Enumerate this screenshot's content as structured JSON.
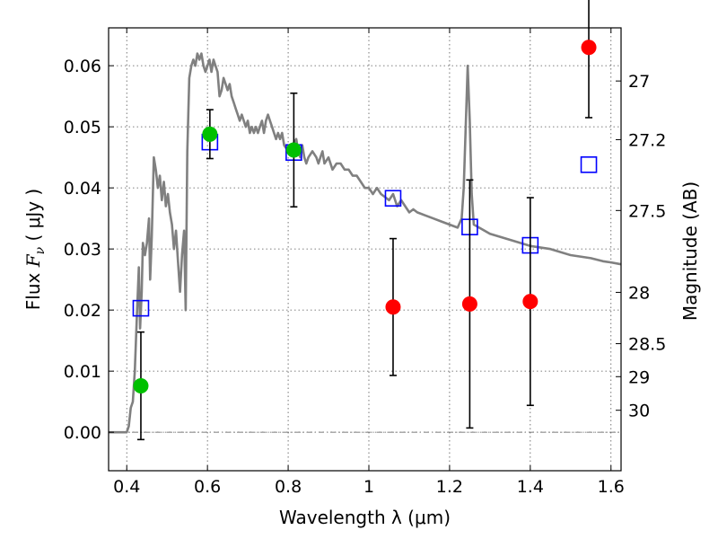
{
  "chart_data": {
    "type": "scatter",
    "xlabel": "Wavelength  λ (μm)",
    "ylabel": "Flux  F_ν  ( μJy )",
    "ylabel_parts": {
      "pre": "Flux  ",
      "math": "F",
      "sub": "ν",
      "post": "  ( μJy )"
    },
    "y2label": "Magnitude (AB)",
    "xlim": [
      0.355,
      1.625
    ],
    "ylim": [
      -0.0063,
      0.0662
    ],
    "grid": true,
    "x_ticks": [
      0.4,
      0.6,
      0.8,
      1.0,
      1.2,
      1.4,
      1.6
    ],
    "x_tick_labels": [
      "0.4",
      "0.6",
      "0.8",
      "1",
      "1.2",
      "1.4",
      "1.6"
    ],
    "y_ticks": [
      0.0,
      0.01,
      0.02,
      0.03,
      0.04,
      0.05,
      0.06
    ],
    "y_tick_labels": [
      "0.00",
      "0.01",
      "0.02",
      "0.03",
      "0.04",
      "0.05",
      "0.06"
    ],
    "y2_ticks": [
      {
        "label": "27",
        "flux": 0.0575
      },
      {
        "label": "27.2",
        "flux": 0.0479
      },
      {
        "label": "27.5",
        "flux": 0.0363
      },
      {
        "label": "28",
        "flux": 0.0229
      },
      {
        "label": "28.5",
        "flux": 0.0145
      },
      {
        "label": "29",
        "flux": 0.0091
      },
      {
        "label": "30",
        "flux": 0.0036
      }
    ],
    "series": [
      {
        "marker": "circle",
        "color": "#00c000",
        "points": [
          {
            "x": 0.435,
            "y": 0.0076,
            "yerr": 0.0088
          },
          {
            "x": 0.606,
            "y": 0.0488,
            "yerr": 0.004
          },
          {
            "x": 0.814,
            "y": 0.0462,
            "yerr": 0.0093
          }
        ]
      },
      {
        "marker": "circle",
        "color": "#ff0000",
        "points": [
          {
            "x": 1.06,
            "y": 0.0205,
            "yerr": 0.0112
          },
          {
            "x": 1.25,
            "y": 0.021,
            "yerr": 0.0203
          },
          {
            "x": 1.4,
            "y": 0.0214,
            "yerr": 0.017
          },
          {
            "x": 1.545,
            "y": 0.063,
            "yerr": 0.0115
          }
        ]
      },
      {
        "marker": "square",
        "color": "#0000ff",
        "points": [
          {
            "x": 0.435,
            "y": 0.0203
          },
          {
            "x": 0.606,
            "y": 0.0475
          },
          {
            "x": 0.814,
            "y": 0.0458
          },
          {
            "x": 1.06,
            "y": 0.0383
          },
          {
            "x": 1.25,
            "y": 0.0336
          },
          {
            "x": 1.4,
            "y": 0.0306
          },
          {
            "x": 1.545,
            "y": 0.0438
          }
        ]
      },
      {
        "marker": "line",
        "color": "#808080",
        "points": [
          [
            0.355,
            0.0
          ],
          [
            0.4,
            0.0
          ],
          [
            0.405,
            0.001
          ],
          [
            0.41,
            0.004
          ],
          [
            0.415,
            0.005
          ],
          [
            0.42,
            0.01
          ],
          [
            0.425,
            0.019
          ],
          [
            0.43,
            0.027
          ],
          [
            0.433,
            0.017
          ],
          [
            0.437,
            0.023
          ],
          [
            0.44,
            0.031
          ],
          [
            0.445,
            0.029
          ],
          [
            0.45,
            0.031
          ],
          [
            0.455,
            0.035
          ],
          [
            0.458,
            0.025
          ],
          [
            0.462,
            0.032
          ],
          [
            0.467,
            0.045
          ],
          [
            0.472,
            0.043
          ],
          [
            0.477,
            0.04
          ],
          [
            0.482,
            0.042
          ],
          [
            0.487,
            0.038
          ],
          [
            0.492,
            0.041
          ],
          [
            0.497,
            0.037
          ],
          [
            0.502,
            0.039
          ],
          [
            0.507,
            0.036
          ],
          [
            0.512,
            0.034
          ],
          [
            0.517,
            0.03
          ],
          [
            0.522,
            0.033
          ],
          [
            0.527,
            0.028
          ],
          [
            0.532,
            0.023
          ],
          [
            0.537,
            0.029
          ],
          [
            0.542,
            0.033
          ],
          [
            0.546,
            0.02
          ],
          [
            0.55,
            0.046
          ],
          [
            0.555,
            0.058
          ],
          [
            0.56,
            0.06
          ],
          [
            0.565,
            0.061
          ],
          [
            0.57,
            0.06
          ],
          [
            0.575,
            0.062
          ],
          [
            0.58,
            0.061
          ],
          [
            0.585,
            0.062
          ],
          [
            0.59,
            0.06
          ],
          [
            0.595,
            0.059
          ],
          [
            0.6,
            0.06
          ],
          [
            0.605,
            0.061
          ],
          [
            0.61,
            0.059
          ],
          [
            0.615,
            0.061
          ],
          [
            0.62,
            0.06
          ],
          [
            0.625,
            0.059
          ],
          [
            0.63,
            0.055
          ],
          [
            0.635,
            0.056
          ],
          [
            0.64,
            0.058
          ],
          [
            0.645,
            0.057
          ],
          [
            0.65,
            0.056
          ],
          [
            0.655,
            0.057
          ],
          [
            0.66,
            0.055
          ],
          [
            0.665,
            0.054
          ],
          [
            0.67,
            0.053
          ],
          [
            0.675,
            0.052
          ],
          [
            0.68,
            0.051
          ],
          [
            0.685,
            0.052
          ],
          [
            0.69,
            0.051
          ],
          [
            0.695,
            0.05
          ],
          [
            0.7,
            0.051
          ],
          [
            0.705,
            0.049
          ],
          [
            0.71,
            0.05
          ],
          [
            0.715,
            0.049
          ],
          [
            0.72,
            0.05
          ],
          [
            0.725,
            0.049
          ],
          [
            0.73,
            0.05
          ],
          [
            0.735,
            0.051
          ],
          [
            0.74,
            0.049
          ],
          [
            0.745,
            0.051
          ],
          [
            0.75,
            0.052
          ],
          [
            0.755,
            0.051
          ],
          [
            0.76,
            0.05
          ],
          [
            0.765,
            0.049
          ],
          [
            0.77,
            0.048
          ],
          [
            0.775,
            0.049
          ],
          [
            0.78,
            0.048
          ],
          [
            0.785,
            0.049
          ],
          [
            0.79,
            0.047
          ],
          [
            0.8,
            0.046
          ],
          [
            0.81,
            0.047
          ],
          [
            0.82,
            0.048
          ],
          [
            0.825,
            0.046
          ],
          [
            0.83,
            0.045
          ],
          [
            0.835,
            0.047
          ],
          [
            0.84,
            0.045
          ],
          [
            0.845,
            0.044
          ],
          [
            0.85,
            0.045
          ],
          [
            0.86,
            0.046
          ],
          [
            0.87,
            0.045
          ],
          [
            0.875,
            0.044
          ],
          [
            0.88,
            0.045
          ],
          [
            0.885,
            0.046
          ],
          [
            0.89,
            0.044
          ],
          [
            0.9,
            0.045
          ],
          [
            0.91,
            0.043
          ],
          [
            0.92,
            0.044
          ],
          [
            0.93,
            0.044
          ],
          [
            0.94,
            0.043
          ],
          [
            0.95,
            0.043
          ],
          [
            0.96,
            0.042
          ],
          [
            0.97,
            0.042
          ],
          [
            0.98,
            0.041
          ],
          [
            0.99,
            0.04
          ],
          [
            1.0,
            0.04
          ],
          [
            1.01,
            0.039
          ],
          [
            1.02,
            0.04
          ],
          [
            1.03,
            0.039
          ],
          [
            1.04,
            0.0385
          ],
          [
            1.05,
            0.038
          ],
          [
            1.06,
            0.039
          ],
          [
            1.07,
            0.037
          ],
          [
            1.08,
            0.038
          ],
          [
            1.09,
            0.037
          ],
          [
            1.1,
            0.036
          ],
          [
            1.11,
            0.0365
          ],
          [
            1.12,
            0.036
          ],
          [
            1.14,
            0.0355
          ],
          [
            1.16,
            0.035
          ],
          [
            1.18,
            0.0345
          ],
          [
            1.2,
            0.034
          ],
          [
            1.22,
            0.0335
          ],
          [
            1.23,
            0.035
          ],
          [
            1.235,
            0.04
          ],
          [
            1.24,
            0.05
          ],
          [
            1.245,
            0.06
          ],
          [
            1.25,
            0.051
          ],
          [
            1.255,
            0.039
          ],
          [
            1.26,
            0.034
          ],
          [
            1.3,
            0.0325
          ],
          [
            1.35,
            0.0315
          ],
          [
            1.4,
            0.0305
          ],
          [
            1.45,
            0.03
          ],
          [
            1.5,
            0.029
          ],
          [
            1.55,
            0.0285
          ],
          [
            1.58,
            0.028
          ],
          [
            1.6,
            0.0278
          ],
          [
            1.625,
            0.0275
          ]
        ]
      }
    ]
  }
}
